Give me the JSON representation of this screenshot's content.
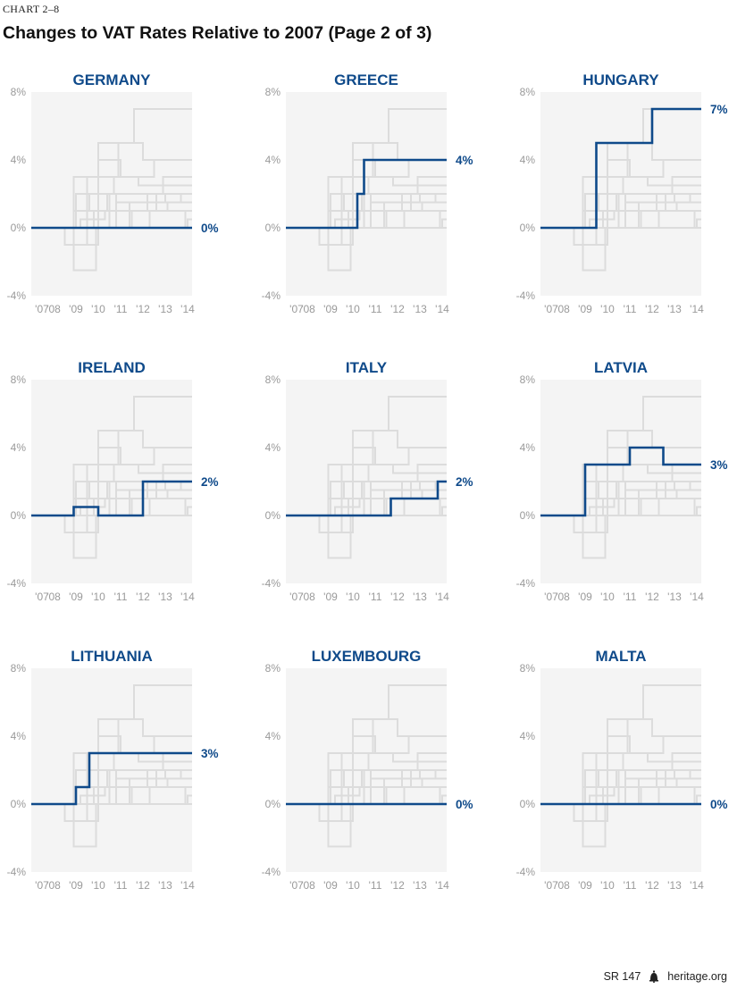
{
  "header": {
    "chart_number": "CHART 2–8",
    "title": "Changes to VAT Rates Relative to 2007 (Page 2 of 3)"
  },
  "footer": {
    "report": "SR 147",
    "source": "heritage.org",
    "source_icon": "liberty-bell-icon"
  },
  "colors": {
    "highlight": "#0f4a8a",
    "background_lines": "#dcdcdc",
    "panel_fill": "#f4f4f4",
    "tick_text": "#9a9a9a"
  },
  "chart_data": [
    {
      "type": "line",
      "title": "GERMANY",
      "x_tick_labels": [
        "'07",
        "'08",
        "'09",
        "'10",
        "'11",
        "'12",
        "'13",
        "'14"
      ],
      "y_tick_labels": [
        "8%",
        "4%",
        "0%",
        "-4%"
      ],
      "xlim": [
        2007,
        2014.2
      ],
      "ylim": [
        -4,
        8
      ],
      "end_label": "0%",
      "series": [
        {
          "x": [
            2007,
            2014.2
          ],
          "y": [
            0,
            0
          ]
        }
      ]
    },
    {
      "type": "line",
      "title": "GREECE",
      "x_tick_labels": [
        "'07",
        "'08",
        "'09",
        "'10",
        "'11",
        "'12",
        "'13",
        "'14"
      ],
      "y_tick_labels": [
        "8%",
        "4%",
        "0%",
        "-4%"
      ],
      "xlim": [
        2007,
        2014.2
      ],
      "ylim": [
        -4,
        8
      ],
      "end_label": "4%",
      "series": [
        {
          "x": [
            2007,
            2010.2,
            2010.2,
            2010.5,
            2010.5,
            2014.2
          ],
          "y": [
            0,
            0,
            2,
            2,
            4,
            4
          ]
        }
      ]
    },
    {
      "type": "line",
      "title": "HUNGARY",
      "x_tick_labels": [
        "'07",
        "'08",
        "'09",
        "'10",
        "'11",
        "'12",
        "'13",
        "'14"
      ],
      "y_tick_labels": [
        "8%",
        "4%",
        "0%",
        "-4%"
      ],
      "xlim": [
        2007,
        2014.2
      ],
      "ylim": [
        -4,
        8
      ],
      "end_label": "7%",
      "series": [
        {
          "x": [
            2007,
            2009.5,
            2009.5,
            2012,
            2012,
            2014.2
          ],
          "y": [
            0,
            0,
            5,
            5,
            7,
            7
          ]
        }
      ]
    },
    {
      "type": "line",
      "title": "IRELAND",
      "x_tick_labels": [
        "'07",
        "'08",
        "'09",
        "'10",
        "'11",
        "'12",
        "'13",
        "'14"
      ],
      "y_tick_labels": [
        "8%",
        "4%",
        "0%",
        "-4%"
      ],
      "xlim": [
        2007,
        2014.2
      ],
      "ylim": [
        -4,
        8
      ],
      "end_label": "2%",
      "series": [
        {
          "x": [
            2007,
            2008.9,
            2008.9,
            2010,
            2010,
            2012,
            2012,
            2014.2
          ],
          "y": [
            0,
            0,
            0.5,
            0.5,
            0,
            0,
            2,
            2
          ]
        }
      ]
    },
    {
      "type": "line",
      "title": "ITALY",
      "x_tick_labels": [
        "'07",
        "'08",
        "'09",
        "'10",
        "'11",
        "'12",
        "'13",
        "'14"
      ],
      "y_tick_labels": [
        "8%",
        "4%",
        "0%",
        "-4%"
      ],
      "xlim": [
        2007,
        2014.2
      ],
      "ylim": [
        -4,
        8
      ],
      "end_label": "2%",
      "series": [
        {
          "x": [
            2007,
            2011.7,
            2011.7,
            2013.8,
            2013.8,
            2014.2
          ],
          "y": [
            0,
            0,
            1,
            1,
            2,
            2
          ]
        }
      ]
    },
    {
      "type": "line",
      "title": "LATVIA",
      "x_tick_labels": [
        "'07",
        "'08",
        "'09",
        "'10",
        "'11",
        "'12",
        "'13",
        "'14"
      ],
      "y_tick_labels": [
        "8%",
        "4%",
        "0%",
        "-4%"
      ],
      "xlim": [
        2007,
        2014.2
      ],
      "ylim": [
        -4,
        8
      ],
      "end_label": "3%",
      "series": [
        {
          "x": [
            2007,
            2009,
            2009,
            2011,
            2011,
            2012.5,
            2012.5,
            2014.2
          ],
          "y": [
            0,
            0,
            3,
            3,
            4,
            4,
            3,
            3
          ]
        }
      ]
    },
    {
      "type": "line",
      "title": "LITHUANIA",
      "x_tick_labels": [
        "'07",
        "'08",
        "'09",
        "'10",
        "'11",
        "'12",
        "'13",
        "'14"
      ],
      "y_tick_labels": [
        "8%",
        "4%",
        "0%",
        "-4%"
      ],
      "xlim": [
        2007,
        2014.2
      ],
      "ylim": [
        -4,
        8
      ],
      "end_label": "3%",
      "series": [
        {
          "x": [
            2007,
            2009,
            2009,
            2009.6,
            2009.6,
            2014.2
          ],
          "y": [
            0,
            0,
            1,
            1,
            3,
            3
          ]
        }
      ]
    },
    {
      "type": "line",
      "title": "LUXEMBOURG",
      "x_tick_labels": [
        "'07",
        "'08",
        "'09",
        "'10",
        "'11",
        "'12",
        "'13",
        "'14"
      ],
      "y_tick_labels": [
        "8%",
        "4%",
        "0%",
        "-4%"
      ],
      "xlim": [
        2007,
        2014.2
      ],
      "ylim": [
        -4,
        8
      ],
      "end_label": "0%",
      "series": [
        {
          "x": [
            2007,
            2014.2
          ],
          "y": [
            0,
            0
          ]
        }
      ]
    },
    {
      "type": "line",
      "title": "MALTA",
      "x_tick_labels": [
        "'07",
        "'08",
        "'09",
        "'10",
        "'11",
        "'12",
        "'13",
        "'14"
      ],
      "y_tick_labels": [
        "8%",
        "4%",
        "0%",
        "-4%"
      ],
      "xlim": [
        2007,
        2014.2
      ],
      "ylim": [
        -4,
        8
      ],
      "end_label": "0%",
      "series": [
        {
          "x": [
            2007,
            2014.2
          ],
          "y": [
            0,
            0
          ]
        }
      ]
    }
  ],
  "context_series": [
    {
      "x": [
        2007,
        2008.9,
        2008.9,
        2010,
        2010,
        2011.6,
        2011.6,
        2014.2
      ],
      "y": [
        0,
        0,
        3,
        3,
        5,
        5,
        7,
        7
      ]
    },
    {
      "x": [
        2007,
        2009.5,
        2009.5,
        2010.9,
        2010.9,
        2012,
        2012,
        2014.2
      ],
      "y": [
        0,
        0,
        3,
        3,
        5,
        5,
        4,
        4
      ]
    },
    {
      "x": [
        2007,
        2010,
        2010,
        2011,
        2011,
        2012.5,
        2012.5,
        2014.2
      ],
      "y": [
        0,
        0,
        4,
        4,
        3,
        3,
        4,
        4
      ]
    },
    {
      "x": [
        2007,
        2009,
        2009,
        2010.7,
        2010.7,
        2011.8,
        2011.8,
        2014.2
      ],
      "y": [
        0,
        0,
        2,
        2,
        3,
        3,
        2.5,
        2.5
      ]
    },
    {
      "x": [
        2007,
        2010.5,
        2010.5,
        2012.9,
        2012.9,
        2014.2
      ],
      "y": [
        0,
        0,
        2,
        2,
        3,
        3
      ]
    },
    {
      "x": [
        2007,
        2011.4,
        2011.4,
        2013.7,
        2013.7,
        2014.2
      ],
      "y": [
        0,
        0,
        1.5,
        1.5,
        2,
        2
      ]
    },
    {
      "x": [
        2007,
        2009.8,
        2009.8,
        2012.6,
        2012.6,
        2014.2
      ],
      "y": [
        0,
        0,
        1,
        1,
        2,
        2
      ]
    },
    {
      "x": [
        2007,
        2008.9,
        2008.9,
        2009.6,
        2009.6,
        2010.8,
        2010.8,
        2012.2,
        2012.2,
        2014.2
      ],
      "y": [
        0,
        0,
        1,
        1,
        2,
        2,
        1,
        1,
        2,
        2
      ]
    },
    {
      "x": [
        2007,
        2009.2,
        2009.2,
        2010.3,
        2010.3,
        2014.2
      ],
      "y": [
        0,
        0,
        0.5,
        0.5,
        1,
        1
      ]
    },
    {
      "x": [
        2007,
        2008.5,
        2008.5,
        2009.5,
        2009.5,
        2010.4,
        2010.4,
        2014.2
      ],
      "y": [
        0,
        0,
        -1,
        -1,
        1,
        1,
        2,
        2
      ]
    },
    {
      "x": [
        2007,
        2008.5,
        2008.5,
        2010,
        2010,
        2014.2
      ],
      "y": [
        0,
        0,
        -1,
        -1,
        0,
        0
      ]
    },
    {
      "x": [
        2007,
        2008.9,
        2008.9,
        2009.9,
        2009.9,
        2014.2
      ],
      "y": [
        0,
        0,
        -2.5,
        -2.5,
        0,
        0
      ]
    },
    {
      "x": [
        2007,
        2011.5,
        2011.5,
        2013.1,
        2013.1,
        2014.2
      ],
      "y": [
        0,
        0,
        1,
        1,
        1.5,
        1.5
      ]
    },
    {
      "x": [
        2007,
        2012.3,
        2012.3,
        2013.9,
        2013.9,
        2014.2
      ],
      "y": [
        0,
        0,
        1,
        1,
        0,
        0
      ]
    },
    {
      "x": [
        2007,
        2010.8,
        2010.8,
        2013,
        2013,
        2014.2
      ],
      "y": [
        0,
        0,
        1.5,
        1.5,
        2,
        2
      ]
    },
    {
      "x": [
        2007,
        2014,
        2014,
        2014.2
      ],
      "y": [
        0,
        0,
        0.5,
        0.5
      ]
    }
  ]
}
